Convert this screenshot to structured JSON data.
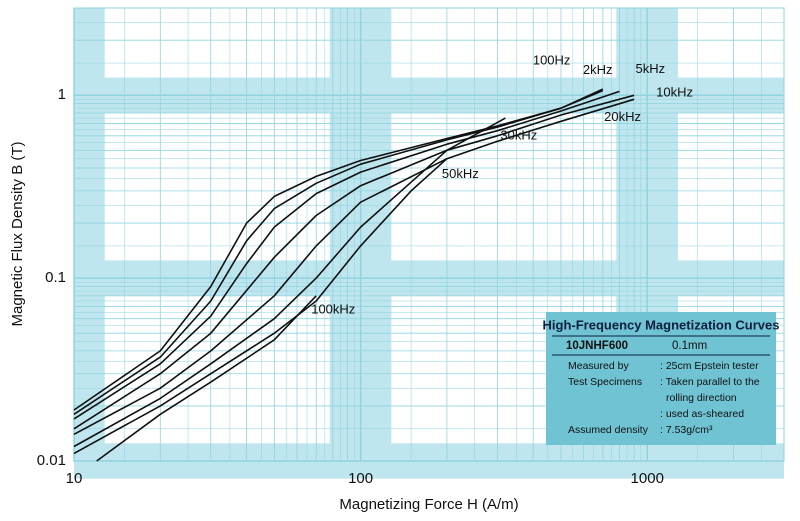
{
  "chart_data": {
    "type": "line",
    "x_label": "Magnetizing Force H (A/m)",
    "y_label": "Magnetic Flux Density B (T)",
    "xscale": "log",
    "yscale": "log",
    "xlim": [
      10,
      3000
    ],
    "ylim": [
      0.01,
      3
    ],
    "xticks": [
      10,
      100,
      1000
    ],
    "yticks": [
      0.01,
      0.1,
      1
    ],
    "grid": true,
    "minor_grid": true,
    "grid_color": "#8fd3df",
    "band_color": "#bfe6ee",
    "series": [
      {
        "name": "100Hz",
        "color": "#111111",
        "x": [
          10,
          20,
          30,
          40,
          50,
          70,
          100,
          200,
          300,
          500,
          700
        ],
        "values": [
          0.019,
          0.04,
          0.09,
          0.2,
          0.28,
          0.36,
          0.44,
          0.58,
          0.68,
          0.85,
          1.08
        ]
      },
      {
        "name": "2kHz",
        "color": "#111111",
        "x": [
          10,
          20,
          30,
          40,
          50,
          70,
          100,
          200,
          300,
          500,
          700
        ],
        "values": [
          0.018,
          0.037,
          0.075,
          0.16,
          0.24,
          0.33,
          0.42,
          0.57,
          0.67,
          0.85,
          1.06
        ]
      },
      {
        "name": "5kHz",
        "color": "#111111",
        "x": [
          10,
          20,
          30,
          40,
          50,
          70,
          100,
          200,
          300,
          500,
          800
        ],
        "values": [
          0.017,
          0.034,
          0.062,
          0.12,
          0.19,
          0.29,
          0.38,
          0.54,
          0.64,
          0.82,
          1.05
        ]
      },
      {
        "name": "10kHz",
        "color": "#111111",
        "x": [
          10,
          20,
          30,
          50,
          70,
          100,
          200,
          300,
          500,
          900
        ],
        "values": [
          0.015,
          0.03,
          0.05,
          0.13,
          0.22,
          0.32,
          0.5,
          0.6,
          0.78,
          1.0
        ]
      },
      {
        "name": "20kHz",
        "color": "#111111",
        "x": [
          10,
          20,
          30,
          50,
          70,
          100,
          200,
          300,
          500,
          900
        ],
        "values": [
          0.014,
          0.025,
          0.04,
          0.08,
          0.15,
          0.26,
          0.45,
          0.56,
          0.72,
          0.95
        ]
      },
      {
        "name": "30kHz",
        "color": "#111111",
        "x": [
          10,
          20,
          30,
          50,
          70,
          100,
          200,
          320
        ],
        "values": [
          0.012,
          0.022,
          0.034,
          0.06,
          0.1,
          0.19,
          0.5,
          0.75
        ]
      },
      {
        "name": "50kHz",
        "color": "#111111",
        "x": [
          10,
          20,
          30,
          50,
          70,
          100,
          150,
          200
        ],
        "values": [
          0.011,
          0.02,
          0.03,
          0.05,
          0.075,
          0.15,
          0.3,
          0.45
        ]
      },
      {
        "name": "100kHz",
        "color": "#111111",
        "x": [
          12,
          20,
          30,
          50,
          70
        ],
        "values": [
          0.01,
          0.018,
          0.027,
          0.046,
          0.08
        ]
      }
    ]
  },
  "info_box": {
    "title": "High-Frequency Magnetization Curves",
    "grade": "10JNHF600",
    "thickness": "0.1mm",
    "rows": [
      [
        "Measured by",
        ": 25cm Epstein tester"
      ],
      [
        "Test Specimens",
        ": Taken parallel to the"
      ],
      [
        "",
        "rolling direction"
      ],
      [
        "",
        ": used as-sheared"
      ],
      [
        "Assumed density",
        ": 7.53g/cm³"
      ]
    ]
  }
}
